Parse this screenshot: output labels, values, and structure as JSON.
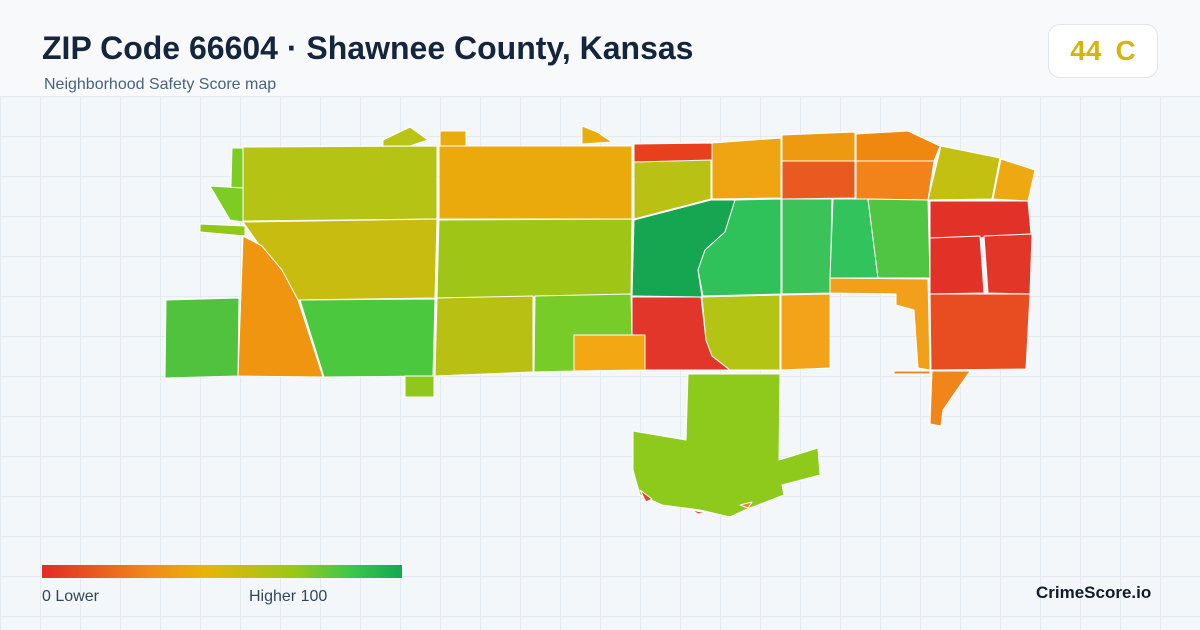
{
  "header": {
    "title": "ZIP Code 66604 · Shawnee County, Kansas",
    "subtitle": "Neighborhood Safety Score map"
  },
  "score": {
    "value": "44",
    "grade": "C",
    "color": "#d4b50a"
  },
  "legend": {
    "min_label": "0  Lower",
    "max_label": "Higher  100",
    "colors": [
      "#e22b26",
      "#f08a1a",
      "#e8b40a",
      "#9ac816",
      "#3fc84a",
      "#14a852"
    ]
  },
  "brand": "CrimeScore.io"
}
